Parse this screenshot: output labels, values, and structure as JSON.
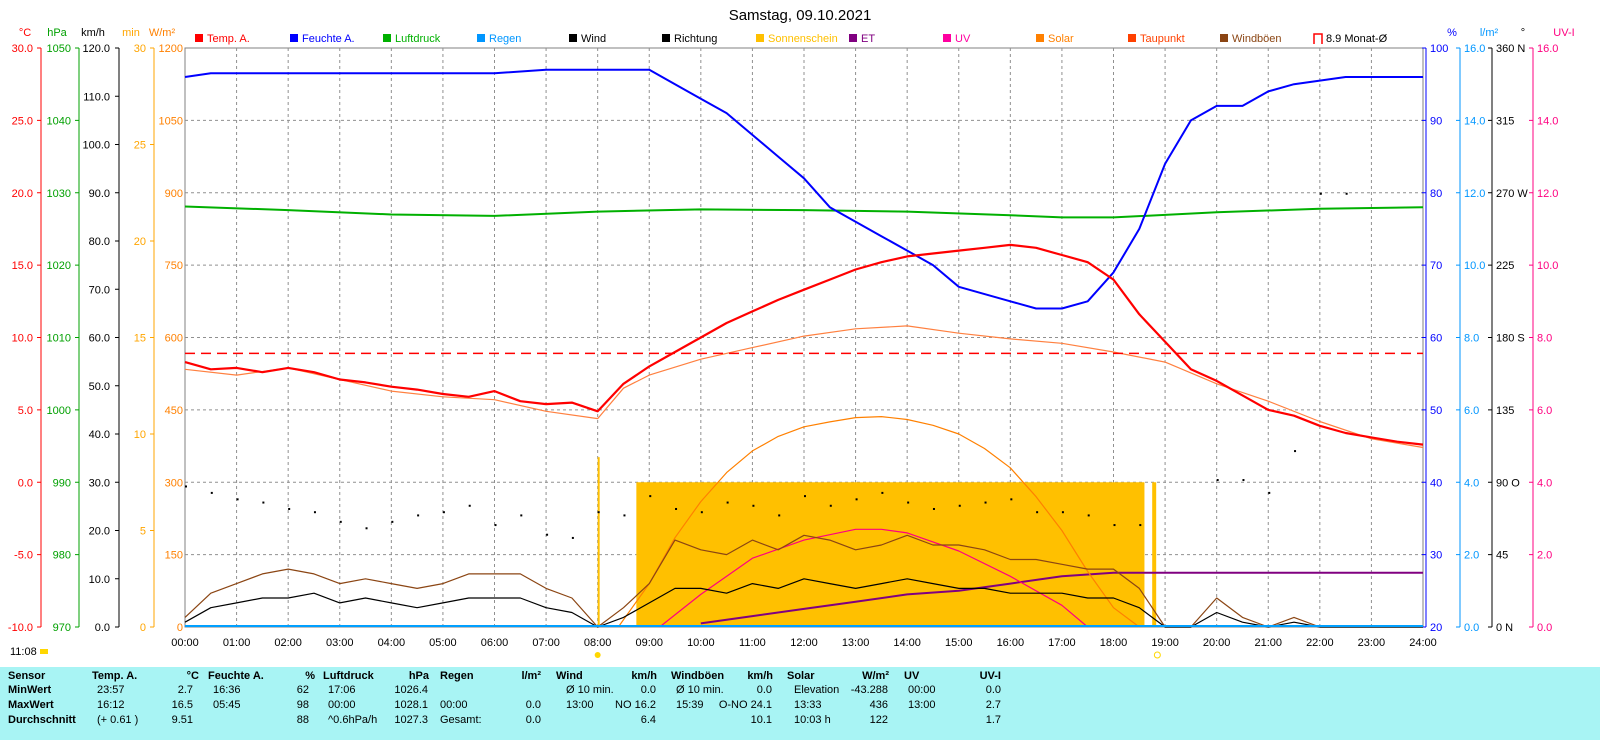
{
  "title": "Samstag, 09.10.2021",
  "current_time": "11:08",
  "legend": [
    {
      "label": "Temp. A.",
      "color": "#ff0000",
      "type": "box"
    },
    {
      "label": "Feuchte A.",
      "color": "#0000ff",
      "type": "box"
    },
    {
      "label": "Luftdruck",
      "color": "#00b000",
      "type": "box"
    },
    {
      "label": "Regen",
      "color": "#0096ff",
      "type": "box"
    },
    {
      "label": "Wind",
      "color": "#000000",
      "type": "box"
    },
    {
      "label": "Richtung",
      "color": "#000000",
      "type": "box"
    },
    {
      "label": "Sonnenschein",
      "color": "#ffc000",
      "type": "box"
    },
    {
      "label": "ET",
      "color": "#800080",
      "type": "box"
    },
    {
      "label": "UV",
      "color": "#ff00a0",
      "type": "box"
    },
    {
      "label": "Solar",
      "color": "#ff8000",
      "type": "box"
    },
    {
      "label": "Taupunkt",
      "color": "#ff4000",
      "type": "box"
    },
    {
      "label": "Windböen",
      "color": "#8b4513",
      "type": "box"
    },
    {
      "label": "8.9 Monat-Ø",
      "color": "#ff0000",
      "type": "bracket"
    }
  ],
  "axis_units": {
    "temp": "°C",
    "pressure": "hPa",
    "wind": "km/h",
    "sun": "min",
    "solar": "W/m²",
    "humidity": "%",
    "rain": "l/m²",
    "direction": "°",
    "uv": "UV-I"
  },
  "axes": {
    "temp": [
      "30.0",
      "25.0",
      "20.0",
      "15.0",
      "10.0",
      "5.0",
      "0.0",
      "-5.0",
      "-10.0"
    ],
    "pressure": [
      "1050",
      "1040",
      "1030",
      "1020",
      "1010",
      "1000",
      "990",
      "980",
      "970"
    ],
    "wind": [
      "120.0",
      "110.0",
      "100.0",
      "90.0",
      "80.0",
      "70.0",
      "60.0",
      "50.0",
      "40.0",
      "30.0",
      "20.0",
      "10.0",
      "0.0"
    ],
    "sun": [
      "30",
      "25",
      "20",
      "15",
      "10",
      "5",
      "0"
    ],
    "solar": [
      "1200",
      "1050",
      "900",
      "750",
      "600",
      "450",
      "300",
      "150",
      "0"
    ],
    "humidity": [
      "100",
      "90",
      "80",
      "70",
      "60",
      "50",
      "40",
      "30",
      "20"
    ],
    "rain": [
      "16.0",
      "14.0",
      "12.0",
      "10.0",
      "8.0",
      "6.0",
      "4.0",
      "2.0",
      "0.0"
    ],
    "direction": [
      "360 N",
      "315",
      "270 W",
      "225",
      "180 S",
      "135",
      "90 O",
      "45",
      "0 N"
    ],
    "uv": [
      "16.0",
      "14.0",
      "12.0",
      "10.0",
      "8.0",
      "6.0",
      "4.0",
      "2.0",
      "0.0"
    ],
    "time": [
      "00:00",
      "01:00",
      "02:00",
      "03:00",
      "04:00",
      "05:00",
      "06:00",
      "07:00",
      "08:00",
      "09:00",
      "10:00",
      "11:00",
      "12:00",
      "13:00",
      "14:00",
      "15:00",
      "16:00",
      "17:00",
      "18:00",
      "19:00",
      "20:00",
      "21:00",
      "22:00",
      "23:00",
      "24:00"
    ]
  },
  "colors": {
    "temp": "#ff0000",
    "pressure": "#00b000",
    "wind": "#000000",
    "sun": "#ffa500",
    "solar": "#ff8000",
    "humidity": "#0000ff",
    "rain": "#00a0ff",
    "uv": "#ff0080",
    "grid": "#808080",
    "panel": "#a8f4f4"
  },
  "chart_data": {
    "type": "line",
    "title": "Samstag, 09.10.2021",
    "x_unit": "hours",
    "xlim": [
      0,
      24
    ],
    "series": [
      {
        "name": "Temp. A.",
        "axis": "°C",
        "ylim": [
          -10,
          30
        ],
        "color": "#ff0000",
        "x": [
          0,
          0.5,
          1,
          1.5,
          2,
          2.5,
          3,
          3.5,
          4,
          4.5,
          5,
          5.5,
          6,
          6.5,
          7,
          7.5,
          8,
          8.5,
          9,
          9.5,
          10,
          10.5,
          11,
          11.5,
          12,
          12.5,
          13,
          13.5,
          14,
          14.5,
          15,
          15.5,
          16,
          16.5,
          17,
          17.5,
          18,
          18.5,
          19,
          19.5,
          20,
          20.5,
          21,
          21.5,
          22,
          22.5,
          23,
          23.5,
          24
        ],
        "y": [
          8.3,
          7.8,
          7.9,
          7.6,
          7.9,
          7.6,
          7.1,
          6.9,
          6.6,
          6.4,
          6.1,
          5.9,
          6.3,
          5.6,
          5.4,
          5.5,
          4.9,
          6.8,
          8.0,
          9.0,
          10.0,
          11.0,
          11.8,
          12.6,
          13.3,
          14.0,
          14.7,
          15.2,
          15.6,
          15.8,
          16.0,
          16.2,
          16.4,
          16.2,
          15.7,
          15.2,
          14.0,
          11.6,
          9.7,
          7.8,
          7.0,
          6.0,
          5.0,
          4.6,
          3.9,
          3.4,
          3.1,
          2.8,
          2.6
        ]
      },
      {
        "name": "Taupunkt",
        "axis": "°C",
        "ylim": [
          -10,
          30
        ],
        "color": "#ff8040",
        "x": [
          0,
          1,
          2,
          3,
          4,
          5,
          6,
          7,
          8,
          8.5,
          9,
          10,
          11,
          12,
          13,
          14,
          15,
          16,
          17,
          18,
          19,
          20,
          21,
          22,
          23,
          24
        ],
        "y": [
          7.8,
          7.4,
          7.9,
          7.1,
          6.3,
          5.9,
          5.7,
          4.9,
          4.4,
          6.5,
          7.4,
          8.5,
          9.3,
          10.1,
          10.6,
          10.8,
          10.3,
          9.9,
          9.6,
          9.0,
          8.3,
          6.8,
          5.6,
          4.2,
          3.0,
          2.4
        ]
      },
      {
        "name": "Feuchte A.",
        "axis": "%",
        "ylim": [
          20,
          100
        ],
        "color": "#0000ff",
        "x": [
          0,
          0.5,
          1,
          2,
          3,
          4,
          5,
          6,
          7,
          8,
          9,
          9.5,
          10,
          10.5,
          11,
          11.5,
          12,
          12.5,
          13,
          13.5,
          14,
          14.5,
          15,
          15.5,
          16,
          16.5,
          17,
          17.5,
          18,
          18.5,
          19,
          19.5,
          20,
          20.5,
          21,
          21.5,
          22,
          22.5,
          23,
          24
        ],
        "y": [
          96,
          96.5,
          96.5,
          96.5,
          96.5,
          96.5,
          96.5,
          96.5,
          97,
          97,
          97,
          95,
          93,
          91,
          88,
          85,
          82,
          78,
          76,
          74,
          72,
          70,
          67,
          66,
          65,
          64,
          64,
          65,
          69,
          75,
          84,
          90,
          92,
          92,
          94,
          95,
          95.5,
          96,
          96,
          96
        ]
      },
      {
        "name": "Luftdruck",
        "axis": "hPa",
        "ylim": [
          970,
          1050
        ],
        "color": "#00b000",
        "x": [
          0,
          2,
          4,
          6,
          8,
          10,
          12,
          14,
          16,
          17,
          18,
          20,
          22,
          24
        ],
        "y": [
          1028.1,
          1027.6,
          1027.0,
          1026.8,
          1027.4,
          1027.7,
          1027.6,
          1027.4,
          1026.9,
          1026.6,
          1026.6,
          1027.3,
          1027.8,
          1028.0
        ]
      },
      {
        "name": "Wind",
        "axis": "km/h",
        "ylim": [
          0,
          120
        ],
        "color": "#000000",
        "x": [
          0,
          0.5,
          1,
          1.5,
          2,
          2.5,
          3,
          3.5,
          4,
          4.5,
          5,
          5.5,
          6,
          6.5,
          7,
          7.5,
          8,
          8.5,
          9,
          9.5,
          10,
          10.5,
          11,
          11.5,
          12,
          12.5,
          13,
          13.5,
          14,
          14.5,
          15,
          15.5,
          16,
          16.5,
          17,
          17.5,
          18,
          18.5,
          19,
          19.5,
          20,
          20.5,
          21,
          21.5,
          22,
          22.5,
          23,
          23.5,
          24
        ],
        "y": [
          1,
          4,
          5,
          6,
          6,
          7,
          5,
          6,
          5,
          4,
          5,
          6,
          6,
          6,
          4,
          3,
          0,
          2,
          5,
          8,
          8,
          7,
          9,
          8,
          10,
          9,
          8,
          9,
          10,
          9,
          8,
          8,
          7,
          7,
          7,
          6,
          6,
          4,
          0,
          0,
          3,
          1,
          0,
          1,
          0,
          0,
          0,
          0,
          0
        ]
      },
      {
        "name": "Windböen",
        "axis": "km/h",
        "ylim": [
          0,
          120
        ],
        "color": "#8b4513",
        "x": [
          0,
          0.5,
          1,
          1.5,
          2,
          2.5,
          3,
          3.5,
          4,
          4.5,
          5,
          5.5,
          6,
          6.5,
          7,
          7.5,
          8,
          8.5,
          9,
          9.5,
          10,
          10.5,
          11,
          11.5,
          12,
          12.5,
          13,
          13.5,
          14,
          14.5,
          15,
          15.5,
          16,
          16.5,
          17,
          17.5,
          18,
          18.5,
          19,
          19.5,
          20,
          20.5,
          21,
          21.5,
          22,
          22.5,
          23,
          23.5,
          24
        ],
        "y": [
          2,
          7,
          9,
          11,
          12,
          11,
          9,
          10,
          9,
          8,
          9,
          11,
          11,
          11,
          8,
          6,
          0,
          4,
          9,
          18,
          16,
          15,
          18,
          16,
          19,
          18,
          16,
          17,
          19,
          17,
          17,
          16,
          14,
          14,
          13,
          12,
          12,
          8,
          0,
          0,
          6,
          2,
          0,
          2,
          0,
          0,
          0,
          0,
          0
        ]
      },
      {
        "name": "Solar",
        "axis": "W/m²",
        "ylim": [
          0,
          1200
        ],
        "color": "#ff8000",
        "x": [
          8.4,
          9,
          9.5,
          10,
          10.5,
          11,
          11.5,
          12,
          12.5,
          13,
          13.5,
          14,
          14.5,
          15,
          15.5,
          16,
          16.5,
          17,
          17.5,
          18,
          18.5
        ],
        "y": [
          0,
          90,
          185,
          260,
          320,
          365,
          395,
          415,
          425,
          434,
          436,
          430,
          418,
          400,
          370,
          330,
          270,
          200,
          115,
          40,
          0
        ]
      },
      {
        "name": "UV",
        "axis": "UV-I",
        "ylim": [
          0,
          16
        ],
        "color": "#ff0080",
        "x": [
          9.2,
          10,
          11,
          12,
          13,
          13.5,
          14,
          15,
          16,
          17,
          17.5
        ],
        "y": [
          0,
          0.9,
          1.9,
          2.4,
          2.7,
          2.7,
          2.6,
          2.1,
          1.4,
          0.6,
          0
        ]
      },
      {
        "name": "ET",
        "axis": "l/m²",
        "ylim": [
          0,
          16
        ],
        "color": "#800080",
        "x": [
          10,
          11,
          12,
          13,
          14,
          15,
          16,
          17,
          18,
          19,
          20,
          21,
          22,
          23,
          24
        ],
        "y": [
          0.1,
          0.3,
          0.5,
          0.7,
          0.9,
          1.0,
          1.2,
          1.4,
          1.5,
          1.5,
          1.5,
          1.5,
          1.5,
          1.5,
          1.5
        ]
      },
      {
        "name": "Sonnenschein",
        "axis": "min",
        "ylim": [
          0,
          30
        ],
        "color": "#ffc000",
        "x": [
          8.0,
          8.75,
          18.6
        ],
        "y": [
          0,
          7.5,
          7.5
        ]
      },
      {
        "name": "Richtung",
        "axis": "°",
        "ylim": [
          0,
          360
        ],
        "color": "#000000",
        "x": [
          0,
          0.5,
          1,
          1.5,
          2,
          2.5,
          3,
          3.5,
          4,
          4.5,
          5,
          5.5,
          6,
          6.5,
          7,
          7.5,
          8,
          8.5,
          9,
          9.5,
          10,
          10.5,
          11,
          11.5,
          12,
          12.5,
          13,
          13.5,
          14,
          14.5,
          15,
          15.5,
          16,
          16.5,
          17,
          17.5,
          18,
          18.5,
          20,
          20.5,
          21,
          21.5,
          22,
          22.5
        ],
        "y": [
          88,
          84,
          80,
          78,
          74,
          72,
          66,
          62,
          66,
          70,
          72,
          76,
          64,
          70,
          58,
          56,
          72,
          70,
          82,
          74,
          72,
          78,
          76,
          70,
          82,
          76,
          80,
          84,
          78,
          74,
          76,
          78,
          80,
          72,
          72,
          70,
          64,
          64,
          92,
          92,
          84,
          110,
          270,
          270
        ]
      }
    ],
    "reference": {
      "name": "8.9 Monat-Ø",
      "axis": "°C",
      "value": 8.9
    }
  },
  "stats": {
    "headers": [
      {
        "name": "Sensor",
        "unit": ""
      },
      {
        "name": "Temp. A.",
        "unit": "°C"
      },
      {
        "name": "Feuchte A.",
        "unit": "%"
      },
      {
        "name": "Luftdruck",
        "unit": "hPa"
      },
      {
        "name": "Regen",
        "unit": "l/m²"
      },
      {
        "name": "Wind",
        "unit": "km/h"
      },
      {
        "name": "Windböen",
        "unit": "km/h"
      },
      {
        "name": "Solar",
        "unit": "W/m²"
      },
      {
        "name": "UV",
        "unit": "UV-I"
      }
    ],
    "rows": [
      {
        "label": "MinWert",
        "temp": [
          "23:57",
          "2.7"
        ],
        "hum": [
          "16:36",
          "62"
        ],
        "press": [
          "17:06",
          "1026.4"
        ],
        "rain": [
          "",
          ""
        ],
        "wind": [
          "Ø 10 min.",
          "0.0"
        ],
        "gust": [
          "Ø 10 min.",
          "0.0"
        ],
        "solar": [
          "Elevation",
          "-43.288"
        ],
        "uv": [
          "00:00",
          "0.0"
        ]
      },
      {
        "label": "MaxWert",
        "temp": [
          "16:12",
          "16.5"
        ],
        "hum": [
          "05:45",
          "98"
        ],
        "press": [
          "00:00",
          "1028.1"
        ],
        "rain": [
          "00:00",
          "0.0"
        ],
        "wind": [
          "13:00",
          "NO 16.2"
        ],
        "gust": [
          "15:39",
          "O-NO 24.1"
        ],
        "solar": [
          "13:33",
          "436"
        ],
        "uv": [
          "13:00",
          "2.7"
        ]
      },
      {
        "label": "Durchschnitt",
        "temp": [
          "(+ 0.61 )",
          "9.51"
        ],
        "hum": [
          "",
          "88"
        ],
        "press": [
          "^0.6hPa/h",
          "1027.3"
        ],
        "rain": [
          "Gesamt:",
          "0.0"
        ],
        "wind": [
          "",
          "6.4"
        ],
        "gust": [
          "",
          "10.1"
        ],
        "solar": [
          "10:03 h",
          "122"
        ],
        "uv": [
          "",
          "1.7"
        ]
      }
    ]
  }
}
